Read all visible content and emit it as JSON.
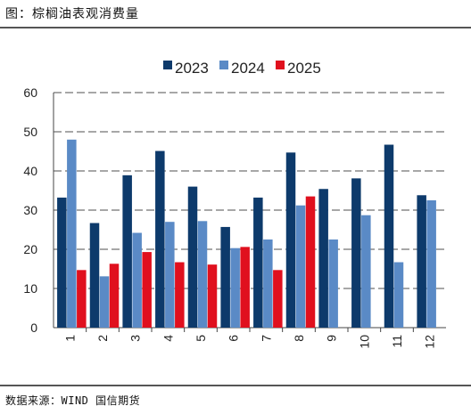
{
  "figure_title": "图：棕榈油表观消费量",
  "source": "数据来源：WIND 国信期货",
  "chart_data": {
    "type": "bar",
    "title": "",
    "xlabel": "",
    "ylabel": "",
    "ylim": [
      0,
      60
    ],
    "yticks": [
      0,
      10,
      20,
      30,
      40,
      50,
      60
    ],
    "grid": true,
    "legend_position": "top",
    "categories": [
      "1",
      "2",
      "3",
      "4",
      "5",
      "6",
      "7",
      "8",
      "9",
      "10",
      "11",
      "12"
    ],
    "series": [
      {
        "name": "2023",
        "color": "#0d3a6b",
        "values": [
          33.2,
          26.7,
          38.9,
          45.1,
          36.0,
          25.7,
          33.2,
          44.7,
          35.4,
          38.1,
          46.7,
          33.8
        ]
      },
      {
        "name": "2024",
        "color": "#5a8ac6",
        "values": [
          48.0,
          13.1,
          24.2,
          27.0,
          27.2,
          20.3,
          22.5,
          31.2,
          22.5,
          28.7,
          16.7,
          32.5
        ]
      },
      {
        "name": "2025",
        "color": "#e0101e",
        "values": [
          14.7,
          16.3,
          19.3,
          16.7,
          16.1,
          20.6,
          14.7,
          33.5,
          null,
          null,
          null,
          null
        ]
      }
    ]
  }
}
